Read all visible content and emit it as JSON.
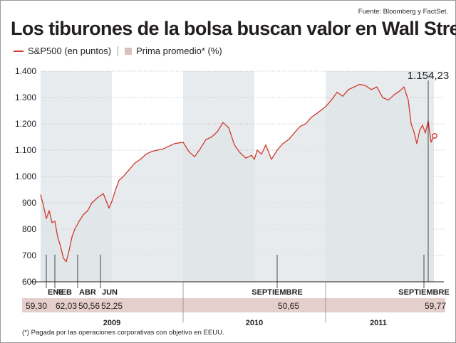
{
  "source": "Fuente: Bloomberg y FactSet.",
  "title": "Los tiburones de la bolsa buscan valor en Wall Street",
  "legend": {
    "line_label": "S&P500 (en puntos)",
    "box_label": "Prima promedio* (%)"
  },
  "footnote": "(*) Pagada por las operaciones corporativas con objetivo en EEUU.",
  "colors": {
    "line": "#d13a2e",
    "area": "#dfe4e7",
    "shaded_band": "#e8ebed",
    "premium_band": "#e5cfcd",
    "grid": "#b8b8b8",
    "text": "#231f20"
  },
  "chart_data": {
    "type": "line",
    "title": "Los tiburones de la bolsa buscan valor en Wall Street",
    "series": [
      {
        "name": "S&P500 (en puntos)",
        "x": [
          2009.0,
          2009.02,
          2009.04,
          2009.06,
          2009.08,
          2009.1,
          2009.12,
          2009.14,
          2009.16,
          2009.18,
          2009.2,
          2009.22,
          2009.24,
          2009.27,
          2009.3,
          2009.33,
          2009.36,
          2009.4,
          2009.44,
          2009.48,
          2009.5,
          2009.52,
          2009.55,
          2009.58,
          2009.62,
          2009.66,
          2009.7,
          2009.74,
          2009.78,
          2009.82,
          2009.86,
          2009.9,
          2009.94,
          2010.0,
          2010.04,
          2010.08,
          2010.12,
          2010.16,
          2010.2,
          2010.24,
          2010.28,
          2010.32,
          2010.36,
          2010.4,
          2010.44,
          2010.48,
          2010.5,
          2010.52,
          2010.55,
          2010.58,
          2010.62,
          2010.66,
          2010.7,
          2010.74,
          2010.78,
          2010.82,
          2010.86,
          2010.9,
          2010.94,
          2011.0,
          2011.04,
          2011.08,
          2011.12,
          2011.16,
          2011.2,
          2011.24,
          2011.28,
          2011.32,
          2011.36,
          2011.4,
          2011.44,
          2011.48,
          2011.52,
          2011.55,
          2011.58,
          2011.6,
          2011.62,
          2011.64,
          2011.66,
          2011.68,
          2011.7,
          2011.72,
          2011.74,
          2011.76
        ],
        "y": [
          930,
          890,
          840,
          870,
          825,
          830,
          770,
          735,
          690,
          676,
          720,
          770,
          800,
          830,
          855,
          870,
          900,
          920,
          935,
          880,
          905,
          940,
          985,
          1000,
          1025,
          1050,
          1065,
          1085,
          1095,
          1100,
          1105,
          1115,
          1125,
          1130,
          1095,
          1075,
          1105,
          1140,
          1150,
          1170,
          1205,
          1185,
          1120,
          1090,
          1070,
          1080,
          1065,
          1100,
          1085,
          1120,
          1065,
          1100,
          1125,
          1140,
          1165,
          1190,
          1200,
          1225,
          1240,
          1265,
          1290,
          1320,
          1305,
          1330,
          1340,
          1350,
          1345,
          1330,
          1340,
          1300,
          1290,
          1310,
          1325,
          1340,
          1290,
          1200,
          1170,
          1125,
          1175,
          1195,
          1165,
          1210,
          1130,
          1154.23
        ]
      }
    ],
    "ylim": [
      600,
      1400
    ],
    "yticks": [
      "1.400",
      "1.300",
      "1.200",
      "1.100",
      "1.000",
      "900",
      "800",
      "700",
      "600"
    ],
    "ytick_values": [
      1400,
      1300,
      1200,
      1100,
      1000,
      900,
      800,
      700,
      600
    ],
    "last_value_label": "1.154,23",
    "grid": true,
    "shaded_periods": [
      [
        2009.0,
        2009.5
      ],
      [
        2010.0,
        2010.5
      ],
      [
        2011.0,
        2011.76
      ]
    ],
    "premium_markers": [
      {
        "month": "ENE",
        "premium": "59,30",
        "x": 2009.04
      },
      {
        "month": "FEB",
        "premium": "62,03",
        "x": 2009.1
      },
      {
        "month": "ABR",
        "premium": "50,56",
        "x": 2009.26
      },
      {
        "month": "JUN",
        "premium": "52,25",
        "x": 2009.42
      },
      {
        "month": "SEPTIEMBRE",
        "premium": "50,65",
        "x": 2010.66
      },
      {
        "month": "SEPTIEMBRE",
        "premium": "59,77",
        "x": 2011.69
      }
    ],
    "years": [
      {
        "label": "2009",
        "x": 2009.5
      },
      {
        "label": "2010",
        "x": 2010.5
      },
      {
        "label": "2011",
        "x": 2011.37
      }
    ]
  }
}
